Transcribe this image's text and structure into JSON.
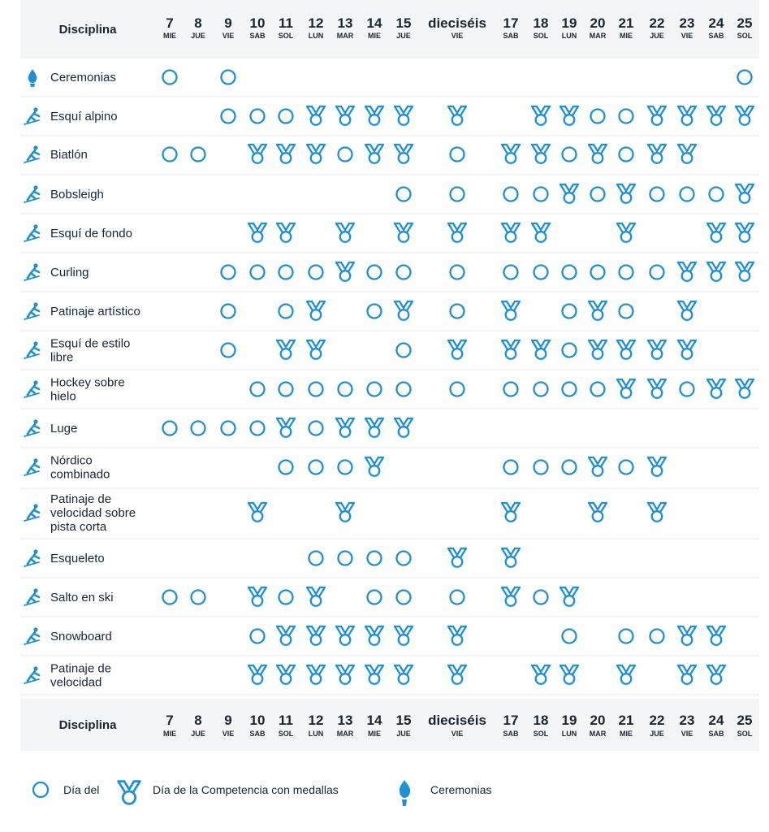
{
  "header": {
    "column_title": "Disciplina"
  },
  "days": [
    {
      "num": "7",
      "wd": "MIE"
    },
    {
      "num": "8",
      "wd": "JUE"
    },
    {
      "num": "9",
      "wd": "VIE"
    },
    {
      "num": "10",
      "wd": "SAB"
    },
    {
      "num": "11",
      "wd": "SOL"
    },
    {
      "num": "12",
      "wd": "LUN"
    },
    {
      "num": "13",
      "wd": "MAR"
    },
    {
      "num": "14",
      "wd": "MIE"
    },
    {
      "num": "15",
      "wd": "JUE"
    },
    {
      "num": "dieciséis",
      "wd": "VIE"
    },
    {
      "num": "17",
      "wd": "SAB"
    },
    {
      "num": "18",
      "wd": "SOL"
    },
    {
      "num": "19",
      "wd": "LUN"
    },
    {
      "num": "20",
      "wd": "MAR"
    },
    {
      "num": "21",
      "wd": "MIE"
    },
    {
      "num": "22",
      "wd": "JUE"
    },
    {
      "num": "23",
      "wd": "VIE"
    },
    {
      "num": "24",
      "wd": "SAB"
    },
    {
      "num": "25",
      "wd": "SOL"
    }
  ],
  "disciplines": [
    {
      "name": [
        "Ceremonias"
      ],
      "icon": "torch-icon",
      "events": [
        "o",
        "",
        "o",
        "",
        "",
        "",
        "",
        "",
        "",
        "",
        "",
        "",
        "",
        "",
        "",
        "",
        "",
        "",
        "o"
      ]
    },
    {
      "name": [
        "Esquí alpino"
      ],
      "icon": "alpine-skier-icon",
      "events": [
        "",
        "",
        "o",
        "o",
        "o",
        "M",
        "M",
        "M",
        "M",
        "M",
        "",
        "M",
        "M",
        "o",
        "o",
        "M",
        "M",
        "M",
        "M"
      ]
    },
    {
      "name": [
        "Biatlón"
      ],
      "icon": "biathlete-icon",
      "events": [
        "o",
        "o",
        "",
        "M",
        "M",
        "M",
        "o",
        "M",
        "M",
        "o",
        "M",
        "M",
        "o",
        "M",
        "o",
        "M",
        "M",
        "",
        ""
      ]
    },
    {
      "name": [
        "Bobsleigh"
      ],
      "icon": "bobsleigh-icon",
      "events": [
        "",
        "",
        "",
        "",
        "",
        "",
        "",
        "",
        "o",
        "o",
        "o",
        "o",
        "M",
        "o",
        "M",
        "o",
        "o",
        "o",
        "M"
      ]
    },
    {
      "name": [
        "Esquí de fondo"
      ],
      "icon": "cross-country-skier-icon",
      "events": [
        "",
        "",
        "",
        "M",
        "M",
        "",
        "M",
        "",
        "M",
        "M",
        "M",
        "M",
        "",
        "",
        "M",
        "",
        "",
        "M",
        "M"
      ]
    },
    {
      "name": [
        "Curling"
      ],
      "icon": "curler-icon",
      "events": [
        "",
        "",
        "o",
        "o",
        "o",
        "o",
        "M",
        "o",
        "o",
        "o",
        "o",
        "o",
        "o",
        "o",
        "o",
        "o",
        "M",
        "M",
        "M"
      ]
    },
    {
      "name": [
        "Patinaje artístico"
      ],
      "icon": "figure-skater-icon",
      "events": [
        "",
        "",
        "o",
        "",
        "o",
        "M",
        "",
        "o",
        "M",
        "o",
        "M",
        "",
        "o",
        "M",
        "o",
        "",
        "M",
        "",
        ""
      ]
    },
    {
      "name": [
        "Esquí de estilo",
        "libre"
      ],
      "icon": "freestyle-skier-icon",
      "events": [
        "",
        "",
        "o",
        "",
        "M",
        "M",
        "",
        "",
        "o",
        "M",
        "M",
        "M",
        "o",
        "M",
        "M",
        "M",
        "M",
        "",
        ""
      ]
    },
    {
      "name": [
        "Hockey sobre",
        "hielo"
      ],
      "icon": "hockey-player-icon",
      "events": [
        "",
        "",
        "",
        "o",
        "o",
        "o",
        "o",
        "o",
        "o",
        "o",
        "o",
        "o",
        "o",
        "o",
        "M",
        "M",
        "o",
        "M",
        "M"
      ]
    },
    {
      "name": [
        "Luge"
      ],
      "icon": "luge-icon",
      "events": [
        "o",
        "o",
        "o",
        "o",
        "M",
        "o",
        "M",
        "M",
        "M",
        "",
        "",
        "",
        "",
        "",
        "",
        "",
        "",
        "",
        ""
      ]
    },
    {
      "name": [
        "Nórdico",
        "combinado"
      ],
      "icon": "nordic-combined-icon",
      "events": [
        "",
        "",
        "",
        "",
        "o",
        "o",
        "o",
        "M",
        "",
        "",
        "o",
        "o",
        "o",
        "M",
        "o",
        "M",
        "",
        "",
        ""
      ]
    },
    {
      "name": [
        "Patinaje de",
        "velocidad sobre",
        "pista corta"
      ],
      "icon": "short-track-skater-icon",
      "events": [
        "",
        "",
        "",
        "M",
        "",
        "",
        "M",
        "",
        "",
        "",
        "M",
        "",
        "",
        "M",
        "",
        "M",
        "",
        "",
        ""
      ]
    },
    {
      "name": [
        "Esqueleto"
      ],
      "icon": "skeleton-icon",
      "events": [
        "",
        "",
        "",
        "",
        "",
        "o",
        "o",
        "o",
        "o",
        "M",
        "M",
        "",
        "",
        "",
        "",
        "",
        "",
        "",
        ""
      ]
    },
    {
      "name": [
        "Salto en ski"
      ],
      "icon": "ski-jumper-icon",
      "events": [
        "o",
        "o",
        "",
        "M",
        "o",
        "M",
        "",
        "o",
        "o",
        "o",
        "M",
        "o",
        "M",
        "",
        "",
        "",
        "",
        "",
        ""
      ]
    },
    {
      "name": [
        "Snowboard"
      ],
      "icon": "snowboarder-icon",
      "events": [
        "",
        "",
        "",
        "o",
        "M",
        "M",
        "M",
        "M",
        "M",
        "M",
        "",
        "",
        "o",
        "",
        "o",
        "o",
        "M",
        "M",
        ""
      ]
    },
    {
      "name": [
        "Patinaje de",
        "velocidad"
      ],
      "icon": "speed-skater-icon",
      "events": [
        "",
        "",
        "",
        "M",
        "M",
        "M",
        "M",
        "M",
        "M",
        "M",
        "",
        "M",
        "M",
        "",
        "M",
        "",
        "M",
        "M",
        ""
      ]
    }
  ],
  "legend": {
    "competition_day": "Día del",
    "medal_day": "Día de la Competencia con medallas",
    "ceremonies": "Ceremonias"
  },
  "colors": {
    "accent": "#1f8fd6",
    "header_bg": "#f4f5f6",
    "text": "#1a2530"
  }
}
